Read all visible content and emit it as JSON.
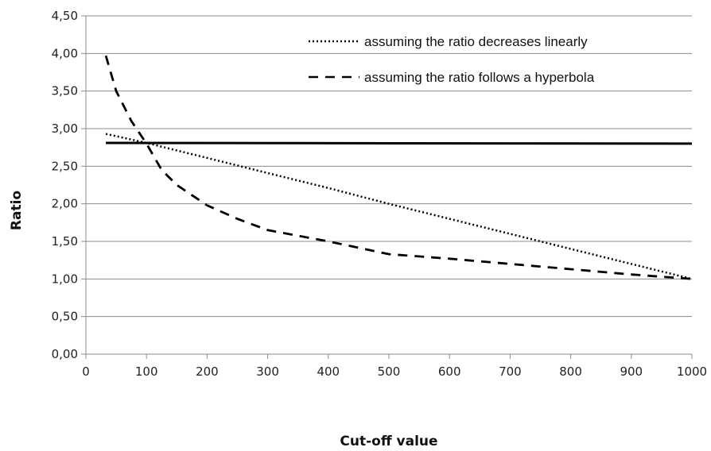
{
  "chart_data": {
    "type": "line",
    "title": "",
    "xlabel": "Cut-off value",
    "ylabel": "Ratio",
    "xlim": [
      0,
      1000
    ],
    "ylim": [
      0,
      4.5
    ],
    "x_ticks": [
      "0",
      "100",
      "200",
      "300",
      "400",
      "500",
      "600",
      "700",
      "800",
      "900",
      "1000"
    ],
    "y_ticks": [
      "0,00",
      "0,50",
      "1,00",
      "1,50",
      "2,00",
      "2,50",
      "3,00",
      "3,50",
      "4,00",
      "4,50"
    ],
    "grid": "horizontal",
    "legend_position": "top-right",
    "series": [
      {
        "name": "assuming the ratio decreases linearly",
        "style": "dotted",
        "color": "#000000",
        "x": [
          33,
          100,
          200,
          300,
          400,
          500,
          600,
          700,
          800,
          900,
          1000
        ],
        "y": [
          2.93,
          2.81,
          2.61,
          2.41,
          2.21,
          2.0,
          1.8,
          1.6,
          1.4,
          1.2,
          1.0
        ]
      },
      {
        "name": "assuming the ratio follows a hyperbola",
        "style": "dashed",
        "color": "#000000",
        "x": [
          33,
          50,
          75,
          100,
          125,
          150,
          200,
          250,
          300,
          400,
          500,
          600,
          700,
          800,
          900,
          1000
        ],
        "y": [
          3.97,
          3.5,
          3.1,
          2.8,
          2.45,
          2.25,
          1.98,
          1.8,
          1.65,
          1.5,
          1.33,
          1.27,
          1.2,
          1.13,
          1.06,
          1.0
        ]
      },
      {
        "style": "solid",
        "color": "#000000",
        "x": [
          33,
          1000
        ],
        "y": [
          2.81,
          2.8
        ]
      }
    ]
  }
}
